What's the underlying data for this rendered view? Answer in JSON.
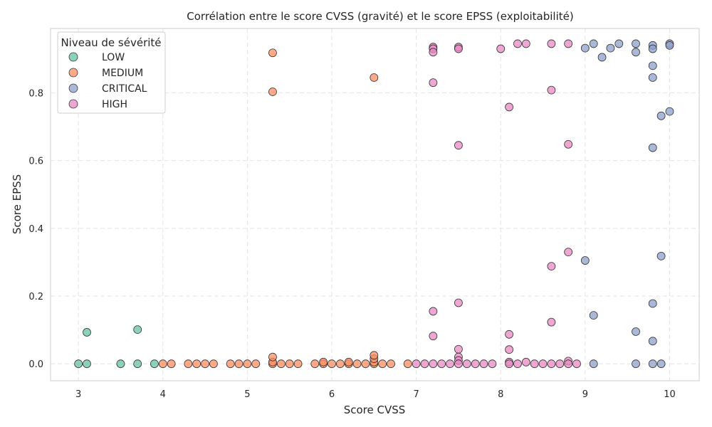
{
  "chart_data": {
    "type": "scatter",
    "title": "Corrélation entre le score CVSS (gravité) et le score EPSS (exploitabilité)",
    "xlabel": "Score CVSS",
    "ylabel": "Score EPSS",
    "xlim": [
      2.67,
      10.35
    ],
    "ylim": [
      -0.05,
      0.99
    ],
    "xticks": [
      3,
      4,
      5,
      6,
      7,
      8,
      9,
      10
    ],
    "yticks": [
      0.0,
      0.2,
      0.4,
      0.6,
      0.8
    ],
    "xtick_labels": [
      "3",
      "4",
      "5",
      "6",
      "7",
      "8",
      "9",
      "10"
    ],
    "ytick_labels": [
      "0.0",
      "0.2",
      "0.4",
      "0.6",
      "0.8"
    ],
    "grid": true,
    "legend": {
      "title": "Niveau de sévérité",
      "placement": "top-left"
    },
    "series": [
      {
        "name": "LOW",
        "color": "#66c2a5",
        "points": [
          [
            3.0,
            0.0
          ],
          [
            3.1,
            0.0
          ],
          [
            3.1,
            0.093
          ],
          [
            3.5,
            0.0
          ],
          [
            3.7,
            0.0
          ],
          [
            3.7,
            0.101
          ],
          [
            3.9,
            0.0
          ]
        ]
      },
      {
        "name": "MEDIUM",
        "color": "#fc8d62",
        "points": [
          [
            4.0,
            0.0
          ],
          [
            4.1,
            0.0
          ],
          [
            4.3,
            0.0
          ],
          [
            4.4,
            0.0
          ],
          [
            4.5,
            0.0
          ],
          [
            4.6,
            0.0
          ],
          [
            4.8,
            0.0
          ],
          [
            4.9,
            0.0
          ],
          [
            5.0,
            0.0
          ],
          [
            5.1,
            0.0
          ],
          [
            5.3,
            0.0
          ],
          [
            5.3,
            0.005
          ],
          [
            5.3,
            0.02
          ],
          [
            5.3,
            0.803
          ],
          [
            5.3,
            0.918
          ],
          [
            5.4,
            0.0
          ],
          [
            5.5,
            0.0
          ],
          [
            5.6,
            0.0
          ],
          [
            5.8,
            0.0
          ],
          [
            5.9,
            0.0
          ],
          [
            5.9,
            0.005
          ],
          [
            6.0,
            0.0
          ],
          [
            6.1,
            0.0
          ],
          [
            6.2,
            0.0
          ],
          [
            6.2,
            0.005
          ],
          [
            6.3,
            0.0
          ],
          [
            6.4,
            0.0
          ],
          [
            6.5,
            0.0
          ],
          [
            6.5,
            0.005
          ],
          [
            6.5,
            0.015
          ],
          [
            6.5,
            0.025
          ],
          [
            6.5,
            0.845
          ],
          [
            6.6,
            0.0
          ],
          [
            6.7,
            0.0
          ],
          [
            6.9,
            0.0
          ]
        ]
      },
      {
        "name": "CRITICAL",
        "color": "#8da0cb",
        "points": [
          [
            9.0,
            0.932
          ],
          [
            9.0,
            0.305
          ],
          [
            9.1,
            0.945
          ],
          [
            9.1,
            0.143
          ],
          [
            9.1,
            0.0
          ],
          [
            9.2,
            0.905
          ],
          [
            9.3,
            0.932
          ],
          [
            9.4,
            0.945
          ],
          [
            9.6,
            0.945
          ],
          [
            9.6,
            0.92
          ],
          [
            9.6,
            0.095
          ],
          [
            9.6,
            0.0
          ],
          [
            9.8,
            0.94
          ],
          [
            9.8,
            0.93
          ],
          [
            9.8,
            0.88
          ],
          [
            9.8,
            0.845
          ],
          [
            9.8,
            0.638
          ],
          [
            9.8,
            0.178
          ],
          [
            9.8,
            0.067
          ],
          [
            9.8,
            0.0
          ],
          [
            9.9,
            0.732
          ],
          [
            9.9,
            0.318
          ],
          [
            9.9,
            0.0
          ],
          [
            10.0,
            0.945
          ],
          [
            10.0,
            0.94
          ],
          [
            10.0,
            0.745
          ]
        ]
      },
      {
        "name": "HIGH",
        "color": "#e78ac3",
        "points": [
          [
            7.0,
            0.0
          ],
          [
            7.1,
            0.0
          ],
          [
            7.2,
            0.935
          ],
          [
            7.2,
            0.93
          ],
          [
            7.2,
            0.92
          ],
          [
            7.2,
            0.83
          ],
          [
            7.2,
            0.155
          ],
          [
            7.2,
            0.082
          ],
          [
            7.2,
            0.0
          ],
          [
            7.3,
            0.0
          ],
          [
            7.4,
            0.0
          ],
          [
            7.5,
            0.935
          ],
          [
            7.5,
            0.93
          ],
          [
            7.5,
            0.645
          ],
          [
            7.5,
            0.18
          ],
          [
            7.5,
            0.043
          ],
          [
            7.5,
            0.02
          ],
          [
            7.5,
            0.01
          ],
          [
            7.5,
            0.0
          ],
          [
            7.6,
            0.0
          ],
          [
            7.7,
            0.0
          ],
          [
            7.8,
            0.0
          ],
          [
            7.9,
            0.0
          ],
          [
            8.0,
            0.93
          ],
          [
            8.1,
            0.758
          ],
          [
            8.1,
            0.087
          ],
          [
            8.1,
            0.042
          ],
          [
            8.1,
            0.005
          ],
          [
            8.1,
            0.0
          ],
          [
            8.2,
            0.945
          ],
          [
            8.2,
            0.0
          ],
          [
            8.3,
            0.945
          ],
          [
            8.3,
            0.005
          ],
          [
            8.4,
            0.0
          ],
          [
            8.5,
            0.0
          ],
          [
            8.6,
            0.945
          ],
          [
            8.6,
            0.808
          ],
          [
            8.6,
            0.288
          ],
          [
            8.6,
            0.123
          ],
          [
            8.6,
            0.0
          ],
          [
            8.7,
            0.0
          ],
          [
            8.8,
            0.945
          ],
          [
            8.8,
            0.648
          ],
          [
            8.8,
            0.33
          ],
          [
            8.8,
            0.008
          ],
          [
            8.8,
            0.0
          ],
          [
            8.9,
            0.0
          ]
        ]
      }
    ]
  }
}
